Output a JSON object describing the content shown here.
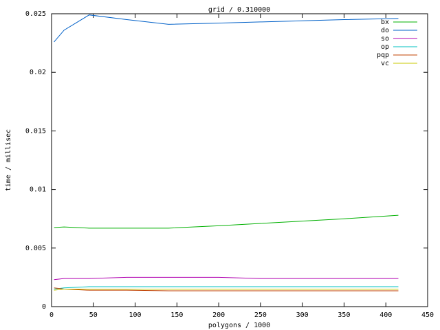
{
  "chart_data": {
    "type": "line",
    "title": "grid / 0.310000",
    "x_label": "polygons / 1000",
    "y_label": "time / millisec",
    "x": [
      3,
      15,
      45,
      90,
      140,
      200,
      250,
      300,
      350,
      415
    ],
    "series": [
      {
        "name": "bx",
        "color": "#00b000",
        "values": [
          0.00675,
          0.0068,
          0.0067,
          0.0067,
          0.0067,
          0.0069,
          0.0071,
          0.0073,
          0.0075,
          0.0078
        ]
      },
      {
        "name": "do",
        "color": "#0060c8",
        "values": [
          0.0226,
          0.0236,
          0.0249,
          0.0245,
          0.0241,
          0.0242,
          0.0243,
          0.0244,
          0.0245,
          0.0246
        ]
      },
      {
        "name": "so",
        "color": "#b000b0",
        "values": [
          0.0023,
          0.0024,
          0.0024,
          0.0025,
          0.0025,
          0.0025,
          0.0024,
          0.0024,
          0.0024,
          0.0024
        ]
      },
      {
        "name": "op",
        "color": "#00c0c0",
        "values": [
          0.0015,
          0.0016,
          0.0017,
          0.0017,
          0.0017,
          0.0017,
          0.0017,
          0.0017,
          0.0017,
          0.0017
        ]
      },
      {
        "name": "pqp",
        "color": "#c04000",
        "values": [
          0.0016,
          0.0015,
          0.0014,
          0.0014,
          0.00135,
          0.00135,
          0.00135,
          0.00135,
          0.00135,
          0.00135
        ]
      },
      {
        "name": "vc",
        "color": "#c8c800",
        "values": [
          0.0014,
          0.0015,
          0.0015,
          0.0015,
          0.0015,
          0.0015,
          0.0015,
          0.0015,
          0.0015,
          0.0015
        ]
      }
    ],
    "xlim": [
      0,
      450
    ],
    "xticks": [
      0,
      50,
      100,
      150,
      200,
      250,
      300,
      350,
      400,
      450
    ],
    "ylim": [
      0,
      0.025
    ],
    "yticks": [
      0,
      0.005,
      0.01,
      0.015,
      0.02,
      0.025
    ],
    "legend": "top-right"
  }
}
